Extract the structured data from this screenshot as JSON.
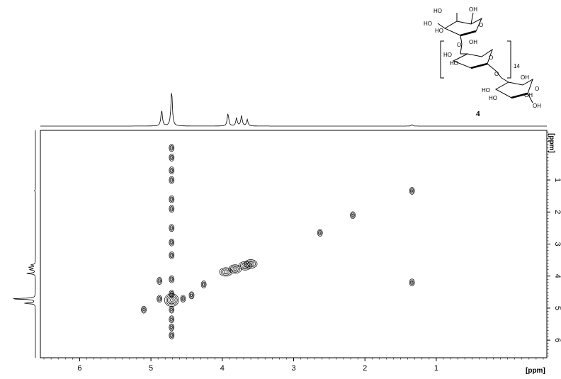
{
  "chart_data": {
    "type": "2d-nmr-contour",
    "title": "",
    "xlabel": "[ppm]",
    "ylabel": "[ppm]",
    "x_ticks": [
      "6",
      "5",
      "4",
      "3",
      "2",
      "1"
    ],
    "y_ticks": [
      "1",
      "2",
      "3",
      "4",
      "5",
      "6"
    ],
    "xlim": [
      6.55,
      -0.55
    ],
    "ylim": [
      -0.55,
      6.55
    ],
    "compound_label": "4",
    "structure": {
      "repeat_count": "14",
      "oh_labels": [
        "HO",
        "HO",
        "HO",
        "OH",
        "O",
        "O",
        "OH",
        "HO",
        "HO",
        "O",
        "O",
        "OH",
        "HO",
        "HO",
        "OH",
        "O",
        "OH"
      ]
    },
    "projection_peaks_ppm": [
      {
        "shift": 4.85,
        "intensity": 0.45
      },
      {
        "shift": 4.71,
        "intensity": 1.0
      },
      {
        "shift": 3.92,
        "intensity": 0.35
      },
      {
        "shift": 3.8,
        "intensity": 0.22
      },
      {
        "shift": 3.73,
        "intensity": 0.28
      },
      {
        "shift": 3.65,
        "intensity": 0.18
      },
      {
        "shift": 1.34,
        "intensity": 0.04
      }
    ],
    "cross_peaks": [
      {
        "x": 4.71,
        "y": 0.0
      },
      {
        "x": 4.71,
        "y": 0.3
      },
      {
        "x": 4.71,
        "y": 0.7
      },
      {
        "x": 4.71,
        "y": 1.0
      },
      {
        "x": 4.71,
        "y": 1.6
      },
      {
        "x": 4.71,
        "y": 1.9
      },
      {
        "x": 4.71,
        "y": 2.5
      },
      {
        "x": 4.71,
        "y": 2.95
      },
      {
        "x": 4.71,
        "y": 3.35
      },
      {
        "x": 4.71,
        "y": 4.1
      },
      {
        "x": 4.71,
        "y": 4.55
      },
      {
        "x": 4.71,
        "y": 4.75
      },
      {
        "x": 4.71,
        "y": 5.05
      },
      {
        "x": 4.71,
        "y": 5.35
      },
      {
        "x": 4.71,
        "y": 5.6
      },
      {
        "x": 4.71,
        "y": 5.85
      },
      {
        "x": 4.88,
        "y": 4.71
      },
      {
        "x": 4.55,
        "y": 4.71
      },
      {
        "x": 4.43,
        "y": 4.6
      },
      {
        "x": 4.88,
        "y": 4.15
      },
      {
        "x": 5.1,
        "y": 5.05
      },
      {
        "x": 4.26,
        "y": 4.26
      },
      {
        "x": 3.95,
        "y": 3.87
      },
      {
        "x": 3.82,
        "y": 3.78
      },
      {
        "x": 3.68,
        "y": 3.68
      },
      {
        "x": 3.6,
        "y": 3.62
      },
      {
        "x": 2.63,
        "y": 2.65
      },
      {
        "x": 2.17,
        "y": 2.1
      },
      {
        "x": 1.34,
        "y": 1.34
      },
      {
        "x": 1.34,
        "y": 4.2
      }
    ]
  }
}
